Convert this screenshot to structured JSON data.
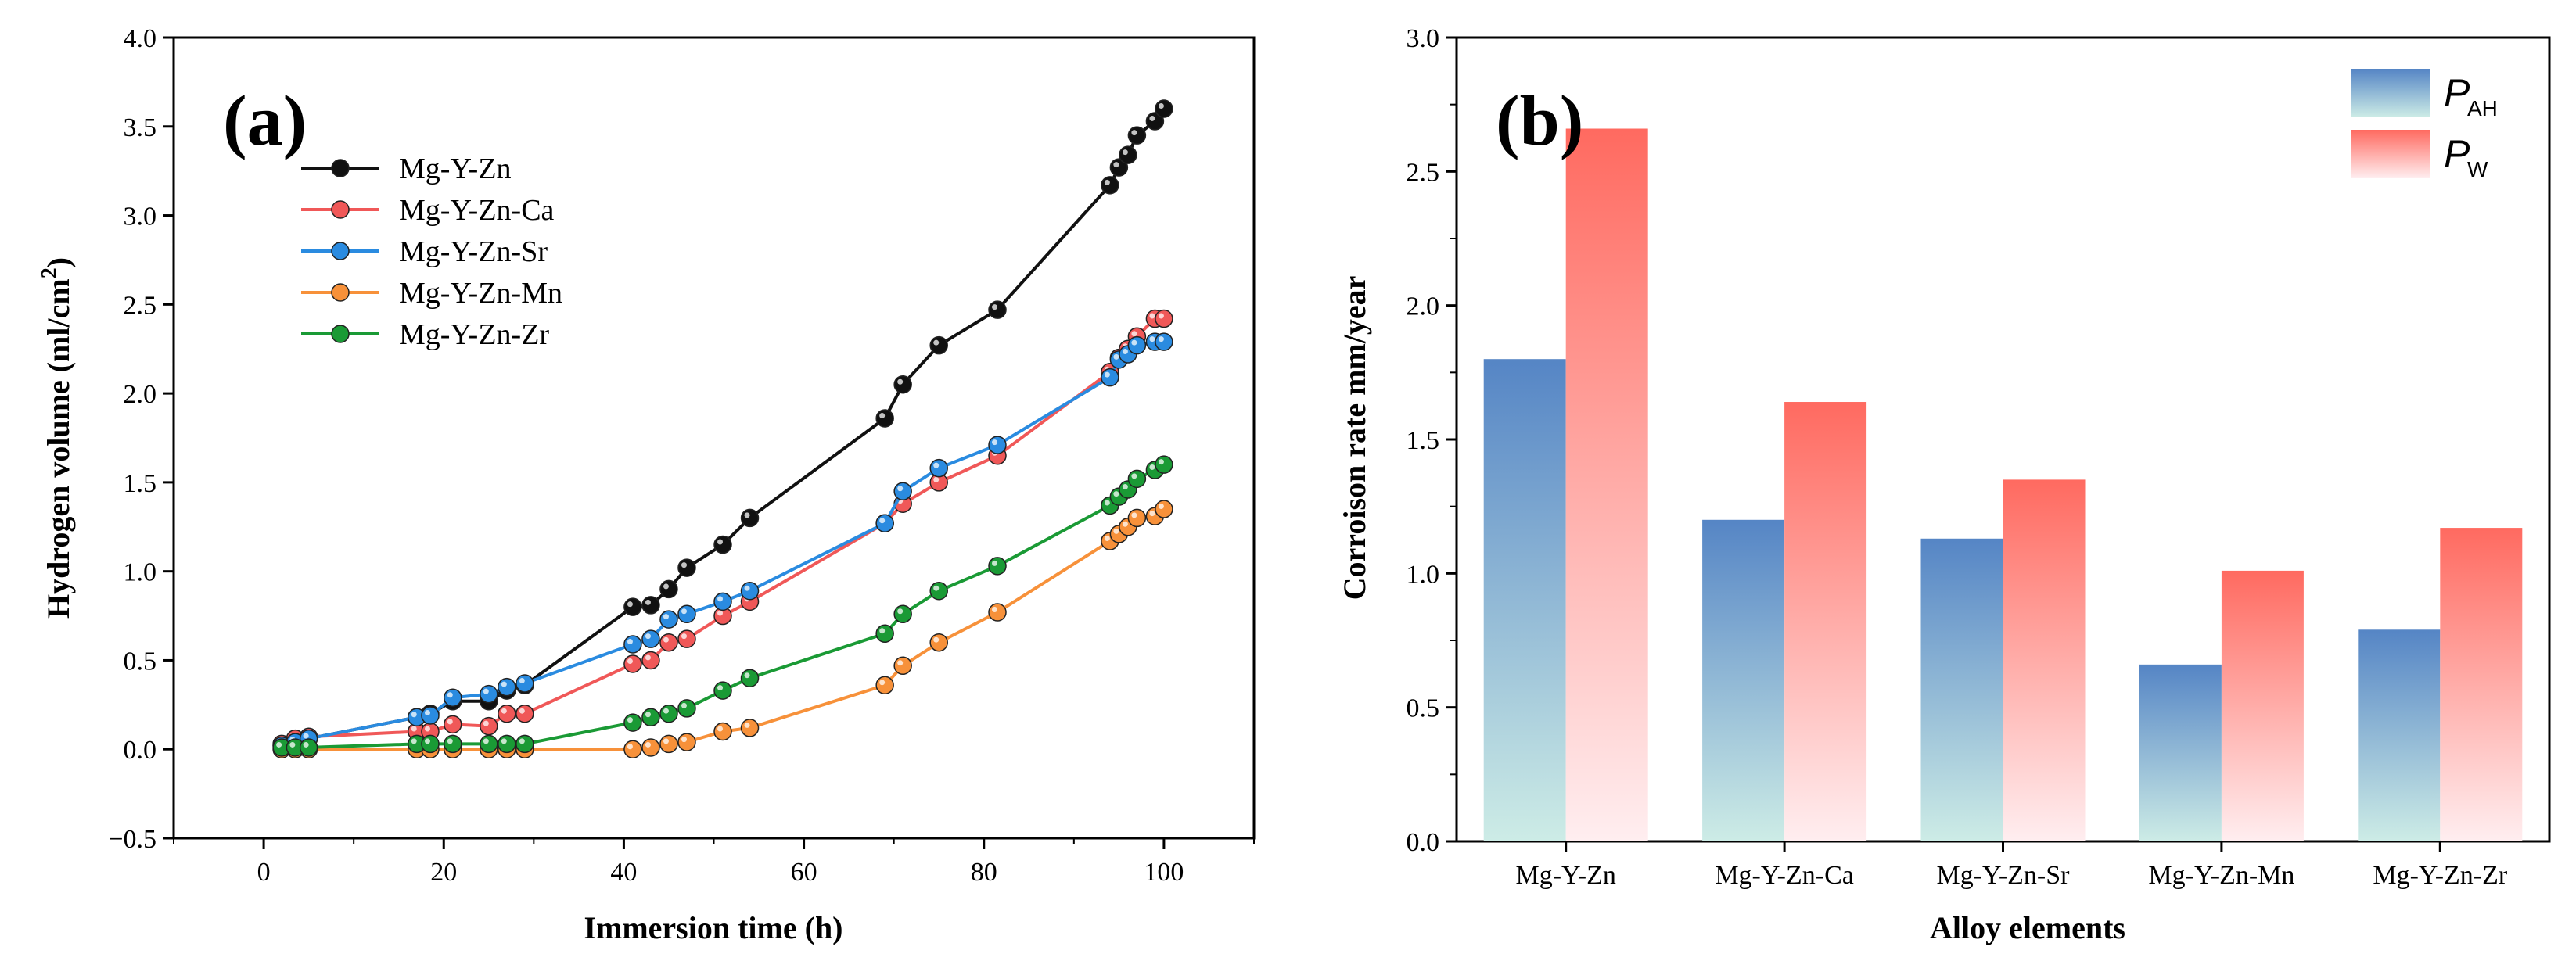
{
  "chart_data": [
    {
      "type": "line",
      "panel_label": "(a)",
      "xlabel": "Immersion time (h)",
      "ylabel": "Hydrogen volume (ml/cm",
      "ylabel_sup": "2",
      "ylabel_end": ")",
      "xlim": [
        -10,
        110
      ],
      "ylim": [
        -0.5,
        4.0
      ],
      "xticks": [
        0,
        20,
        40,
        60,
        80,
        100
      ],
      "xtick_labels": [
        "0",
        "20",
        "40",
        "60",
        "80",
        "100"
      ],
      "yticks": [
        -0.5,
        0.0,
        0.5,
        1.0,
        1.5,
        2.0,
        2.5,
        3.0,
        3.5,
        4.0
      ],
      "ytick_labels": [
        "−0.5",
        "0.0",
        "0.5",
        "1.0",
        "1.5",
        "2.0",
        "2.5",
        "3.0",
        "3.5",
        "4.0"
      ],
      "legend_position": "top-left",
      "series": [
        {
          "name": "Mg-Y-Zn",
          "color": "#111111",
          "x": [
            2,
            3.5,
            5,
            17,
            18.5,
            21,
            25,
            27,
            29,
            41,
            43,
            45,
            47,
            51,
            54,
            69,
            71,
            75,
            81.5,
            94,
            95,
            96,
            97,
            99,
            100
          ],
          "y": [
            0.02,
            0.04,
            0.06,
            0.18,
            0.2,
            0.27,
            0.27,
            0.33,
            0.36,
            0.8,
            0.81,
            0.9,
            1.02,
            1.15,
            1.3,
            1.86,
            2.05,
            2.27,
            2.47,
            3.17,
            3.27,
            3.34,
            3.45,
            3.53,
            3.6
          ]
        },
        {
          "name": "Mg-Y-Zn-Ca",
          "color": "#f05858",
          "x": [
            2,
            3.5,
            5,
            17,
            18.5,
            21,
            25,
            27,
            29,
            41,
            43,
            45,
            47,
            51,
            54,
            69,
            71,
            75,
            81.5,
            94,
            95,
            96,
            97,
            99,
            100
          ],
          "y": [
            0.03,
            0.06,
            0.07,
            0.1,
            0.1,
            0.14,
            0.13,
            0.2,
            0.2,
            0.48,
            0.5,
            0.6,
            0.62,
            0.75,
            0.83,
            1.27,
            1.38,
            1.5,
            1.65,
            2.12,
            2.2,
            2.25,
            2.32,
            2.42,
            2.42
          ]
        },
        {
          "name": "Mg-Y-Zn-Sr",
          "color": "#2a8be0",
          "x": [
            2,
            3.5,
            5,
            17,
            18.5,
            21,
            25,
            27,
            29,
            41,
            43,
            45,
            47,
            51,
            54,
            69,
            71,
            75,
            81.5,
            94,
            95,
            96,
            97,
            99,
            100
          ],
          "y": [
            0.02,
            0.04,
            0.06,
            0.18,
            0.19,
            0.29,
            0.31,
            0.35,
            0.37,
            0.59,
            0.62,
            0.73,
            0.76,
            0.83,
            0.89,
            1.27,
            1.45,
            1.58,
            1.71,
            2.09,
            2.19,
            2.22,
            2.27,
            2.29,
            2.29
          ]
        },
        {
          "name": "Mg-Y-Zn-Mn",
          "color": "#f7913a",
          "x": [
            2,
            3.5,
            5,
            17,
            18.5,
            21,
            25,
            27,
            29,
            41,
            43,
            45,
            47,
            51,
            54,
            69,
            71,
            75,
            81.5,
            94,
            95,
            96,
            97,
            99,
            100
          ],
          "y": [
            0.0,
            0.0,
            0.0,
            0.0,
            0.0,
            0.0,
            0.0,
            0.0,
            0.0,
            0.0,
            0.01,
            0.03,
            0.04,
            0.1,
            0.12,
            0.36,
            0.47,
            0.6,
            0.77,
            1.17,
            1.21,
            1.25,
            1.3,
            1.31,
            1.35
          ]
        },
        {
          "name": "Mg-Y-Zn-Zr",
          "color": "#1a9a35",
          "x": [
            2,
            3.5,
            5,
            17,
            18.5,
            21,
            25,
            27,
            29,
            41,
            43,
            45,
            47,
            51,
            54,
            69,
            71,
            75,
            81.5,
            94,
            95,
            96,
            97,
            99,
            100
          ],
          "y": [
            0.01,
            0.01,
            0.01,
            0.03,
            0.03,
            0.03,
            0.03,
            0.03,
            0.03,
            0.15,
            0.18,
            0.2,
            0.23,
            0.33,
            0.4,
            0.65,
            0.76,
            0.89,
            1.03,
            1.37,
            1.42,
            1.46,
            1.52,
            1.57,
            1.6
          ]
        }
      ]
    },
    {
      "type": "bar",
      "panel_label": "(b)",
      "xlabel": "Alloy elements",
      "ylabel": "Corroison rate mm/year",
      "ylim": [
        0.0,
        3.0
      ],
      "yticks": [
        0.0,
        0.5,
        1.0,
        1.5,
        2.0,
        2.5,
        3.0
      ],
      "ytick_labels": [
        "0.0",
        "0.5",
        "1.0",
        "1.5",
        "2.0",
        "2.5",
        "3.0"
      ],
      "categories": [
        "Mg-Y-Zn",
        "Mg-Y-Zn-Ca",
        "Mg-Y-Zn-Sr",
        "Mg-Y-Zn-Mn",
        "Mg-Y-Zn-Zr"
      ],
      "legend_position": "top-right",
      "series": [
        {
          "name": "P",
          "subscript": "AH",
          "color_top": "#5585c5",
          "color_bottom": "#cdece6",
          "values": [
            1.8,
            1.2,
            1.13,
            0.66,
            0.79
          ]
        },
        {
          "name": "P",
          "subscript": "W",
          "color_top": "#ff6a60",
          "color_bottom": "#ffeef0",
          "values": [
            2.66,
            1.64,
            1.35,
            1.01,
            1.17
          ]
        }
      ]
    }
  ]
}
